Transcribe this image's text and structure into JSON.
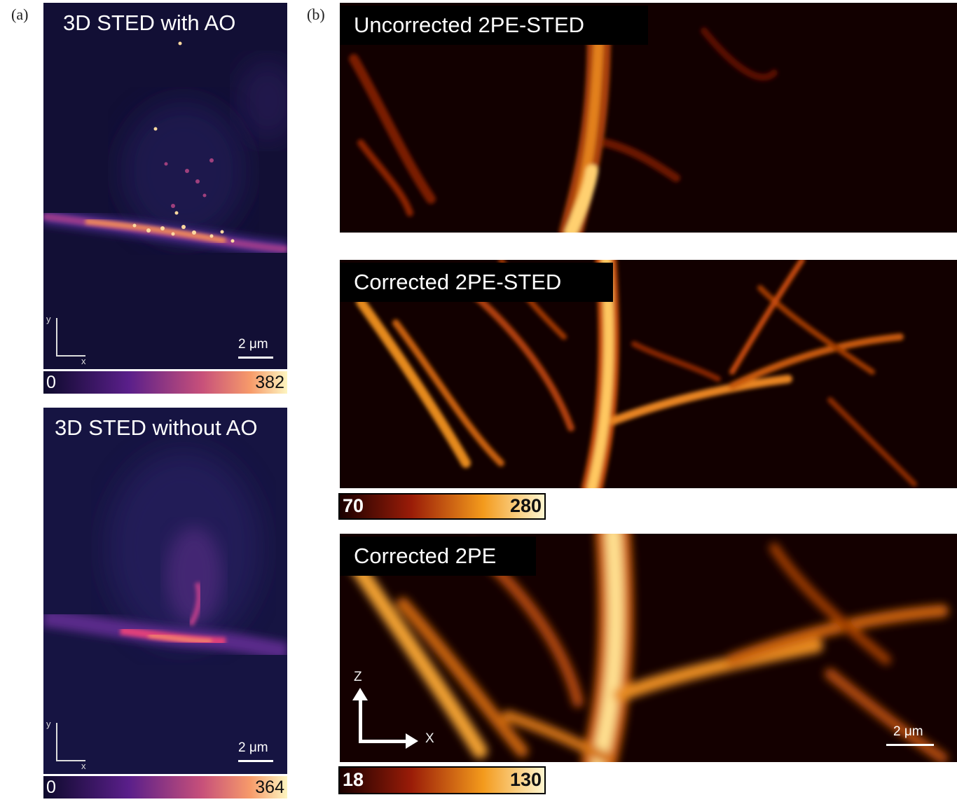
{
  "panel_a": {
    "letter": "(a)",
    "top": {
      "title": "3D STED with AO",
      "scale_label": "2 μm",
      "axis_y": "y",
      "axis_x": "x",
      "colorbar_min": "0",
      "colorbar_max": "382"
    },
    "bottom": {
      "title": "3D STED without AO",
      "scale_label": "2 μm",
      "axis_y": "y",
      "axis_x": "x",
      "colorbar_min": "0",
      "colorbar_max": "364"
    }
  },
  "panel_b": {
    "letter": "(b)",
    "images": [
      {
        "title": "Uncorrected 2PE-STED"
      },
      {
        "title": "Corrected 2PE-STED",
        "colorbar_min": "70",
        "colorbar_max": "280"
      },
      {
        "title": "Corrected 2PE",
        "colorbar_min": "18",
        "colorbar_max": "130",
        "axis_z": "Z",
        "axis_x": "X",
        "scale_label": "2 μm"
      }
    ]
  },
  "colors": {
    "inferno_dark": "#100c2e",
    "afmhot_bright": "#ffe7a0"
  }
}
